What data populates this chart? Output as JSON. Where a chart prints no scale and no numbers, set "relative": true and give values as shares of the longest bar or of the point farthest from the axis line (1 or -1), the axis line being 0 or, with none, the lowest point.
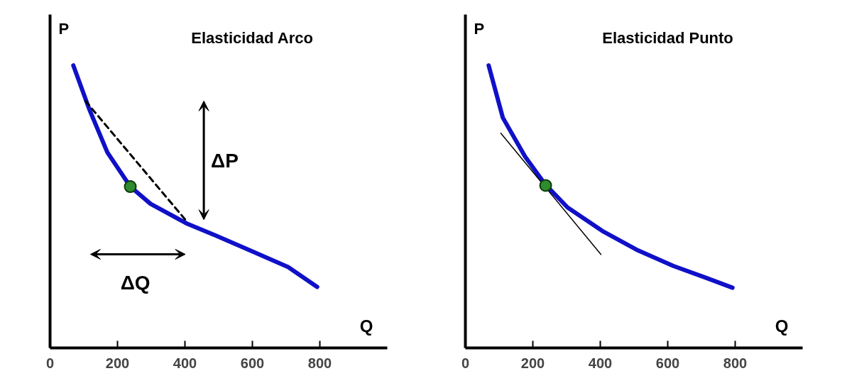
{
  "chart_data": [
    {
      "type": "line",
      "title": "Elasticidad Arco",
      "xlabel": "Q",
      "ylabel": "P",
      "relative": true,
      "xlim": [
        0,
        1000
      ],
      "xticks": [
        0,
        200,
        400,
        600,
        800
      ],
      "grid": false,
      "annotations": [
        "ΔP",
        "ΔQ"
      ],
      "series": [
        {
          "color": "#1010c8",
          "line_style": "solid",
          "x": [
            69,
            116,
            170,
            238,
            298,
            406,
            491,
            599,
            706,
            792
          ],
          "values": [
            1,
            0.846,
            0.692,
            0.571,
            0.51,
            0.44,
            0.398,
            0.342,
            0.286,
            0.216
          ]
        },
        {
          "color": "#000000",
          "line_style": "dashed",
          "x": [
            105,
            401
          ],
          "values": [
            0.874,
            0.454
          ]
        },
        {
          "type": "scatter",
          "marker": "circle",
          "color": "#2e8b2e",
          "x": [
            238
          ],
          "values": [
            0.571
          ]
        }
      ]
    },
    {
      "type": "line",
      "title": "Elasticidad Punto",
      "xlabel": "Q",
      "ylabel": "P",
      "relative": true,
      "xlim": [
        0,
        1000
      ],
      "xticks": [
        0,
        200,
        400,
        600,
        800
      ],
      "grid": false,
      "series": [
        {
          "color": "#1010c8",
          "line_style": "solid",
          "x": [
            69,
            111,
            177,
            236,
            303,
            406,
            512,
            617,
            712,
            792
          ],
          "values": [
            1,
            0.815,
            0.677,
            0.58,
            0.497,
            0.414,
            0.345,
            0.29,
            0.249,
            0.213
          ]
        },
        {
          "color": "#000000",
          "line_style": "solid",
          "x": [
            105,
            402
          ],
          "values": [
            0.76,
            0.331
          ]
        },
        {
          "type": "scatter",
          "marker": "circle",
          "color": "#2e8b2e",
          "x": [
            238
          ],
          "values": [
            0.575
          ]
        }
      ]
    }
  ]
}
